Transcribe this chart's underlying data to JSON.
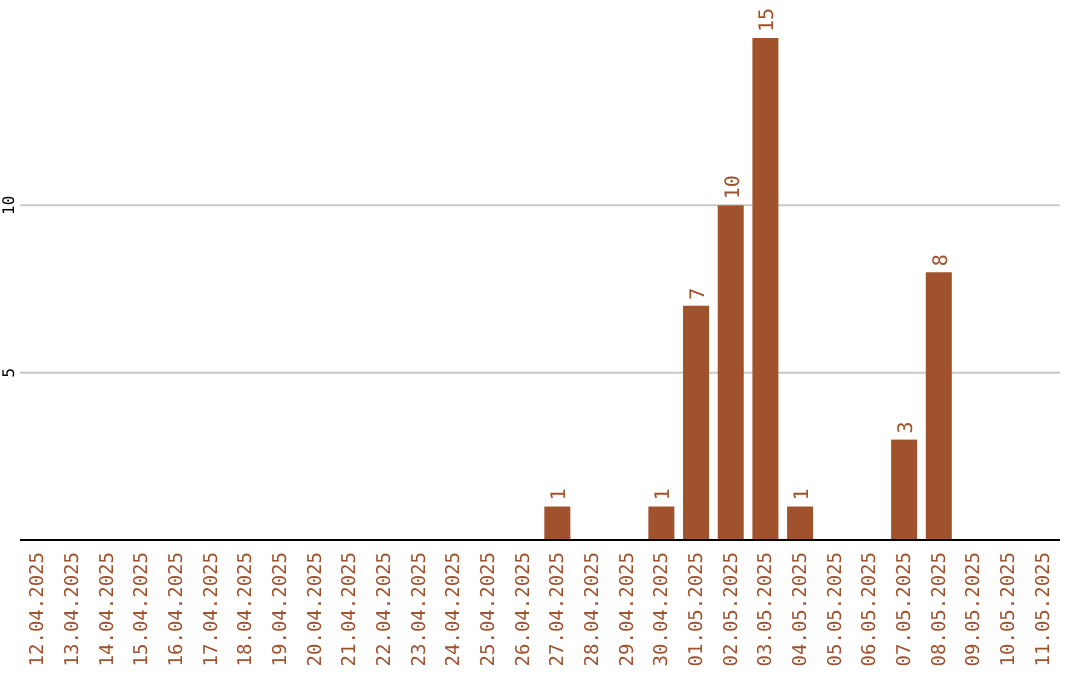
{
  "chart_data": {
    "type": "bar",
    "categories": [
      "12.04.2025",
      "13.04.2025",
      "14.04.2025",
      "15.04.2025",
      "16.04.2025",
      "17.04.2025",
      "18.04.2025",
      "19.04.2025",
      "20.04.2025",
      "21.04.2025",
      "22.04.2025",
      "23.04.2025",
      "24.04.2025",
      "25.04.2025",
      "26.04.2025",
      "27.04.2025",
      "28.04.2025",
      "29.04.2025",
      "30.04.2025",
      "01.05.2025",
      "02.05.2025",
      "03.05.2025",
      "04.05.2025",
      "05.05.2025",
      "06.05.2025",
      "07.05.2025",
      "08.05.2025",
      "09.05.2025",
      "10.05.2025",
      "11.05.2025"
    ],
    "values": [
      0,
      0,
      0,
      0,
      0,
      0,
      0,
      0,
      0,
      0,
      0,
      0,
      0,
      0,
      0,
      1,
      0,
      0,
      1,
      7,
      10,
      15,
      1,
      0,
      0,
      3,
      8,
      0,
      0,
      0
    ],
    "value_labels": [
      null,
      null,
      null,
      null,
      null,
      null,
      null,
      null,
      null,
      null,
      null,
      null,
      null,
      null,
      null,
      "1",
      null,
      null,
      "1",
      "7",
      "10",
      "15",
      "1",
      null,
      null,
      "3",
      "8",
      null,
      null,
      null
    ],
    "color": "#a0522d",
    "ylim": [
      0,
      15
    ],
    "yticks": [
      5,
      10
    ],
    "grid": "y"
  }
}
